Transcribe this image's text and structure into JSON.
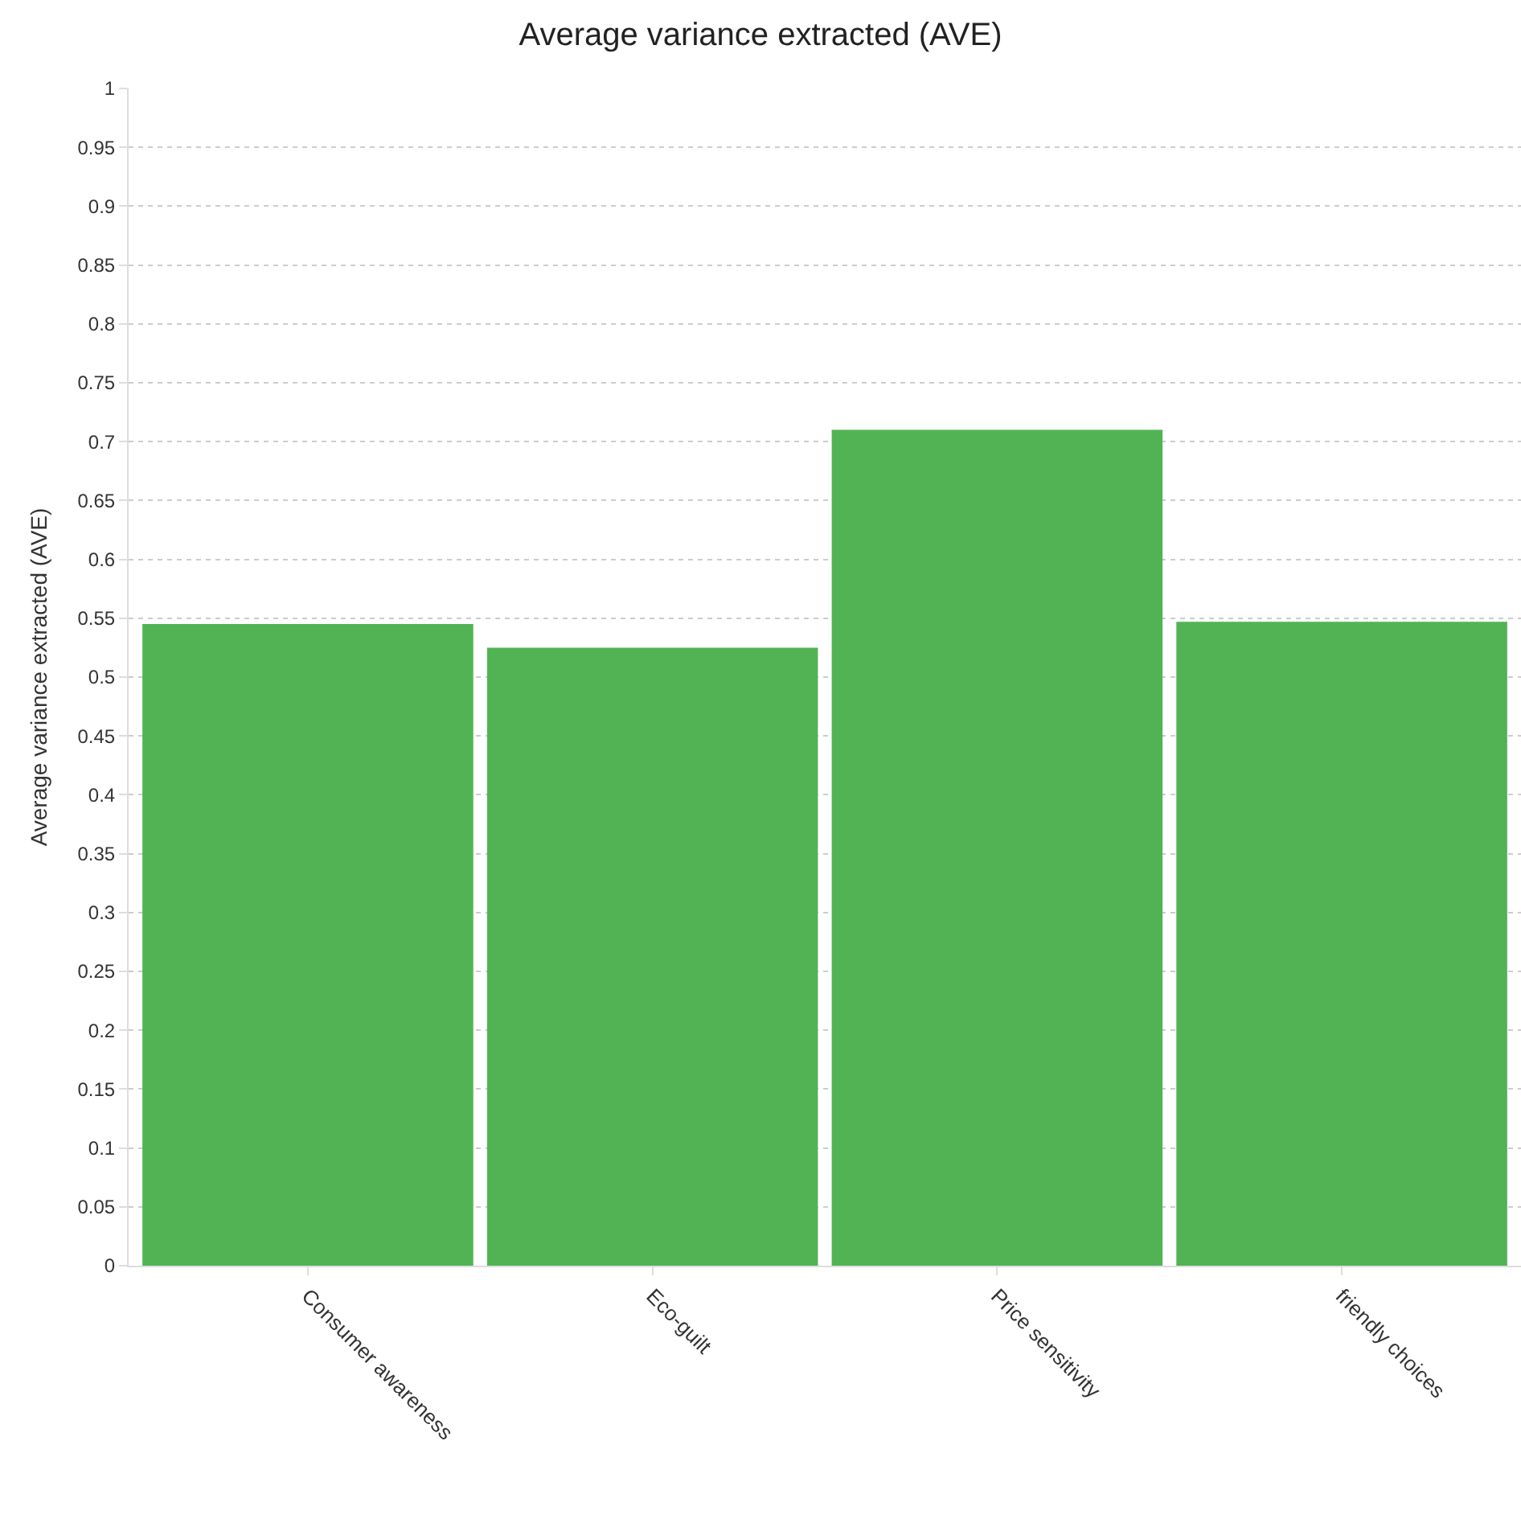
{
  "chart_data": {
    "type": "bar",
    "title": "Average variance extracted (AVE)",
    "ylabel": "Average variance extracted (AVE)",
    "categories": [
      "Consumer awareness",
      "Eco-guilt",
      "Price sensitivity",
      "friendly choices"
    ],
    "values": [
      0.545,
      0.525,
      0.71,
      0.547
    ],
    "color": "#52b355",
    "ylim": [
      0,
      1
    ],
    "yticks": [
      0,
      0.05,
      0.1,
      0.15,
      0.2,
      0.25,
      0.3,
      0.35,
      0.4,
      0.45,
      0.5,
      0.55,
      0.6,
      0.65,
      0.7,
      0.75,
      0.8,
      0.85,
      0.9,
      0.95,
      1
    ],
    "grid": "y"
  }
}
